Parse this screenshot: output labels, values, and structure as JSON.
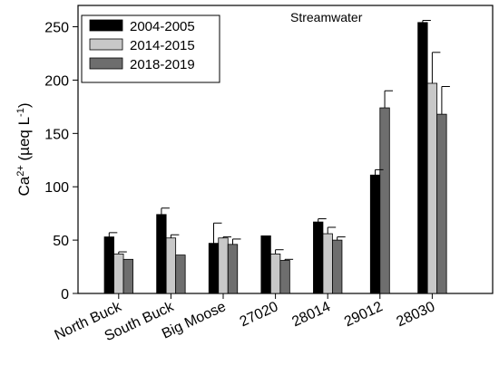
{
  "chart_data": {
    "type": "bar",
    "title": "Streamwater",
    "ylabel": {
      "base": "Ca",
      "base_sup": "2+",
      "unit_open": " (µeq L",
      "unit_sup": "-1",
      "unit_close": ")"
    },
    "xlabel": "",
    "ylim": [
      0,
      270
    ],
    "yticks": [
      0,
      50,
      100,
      150,
      200,
      250
    ],
    "grid": false,
    "legend_position": "top-left",
    "categories": [
      "North Buck",
      "South Buck",
      "Big Moose",
      "27020",
      "28014",
      "29012",
      "28030"
    ],
    "series": [
      {
        "name": "2004-2005",
        "color": "#000000",
        "values": [
          53,
          74,
          47,
          54,
          67,
          null,
          254
        ],
        "errors": [
          4,
          6,
          19,
          0,
          3,
          null,
          2
        ]
      },
      {
        "name": "2014-2015",
        "color": "#c8c8c8",
        "values": [
          37,
          52,
          52,
          37,
          56,
          null,
          197
        ],
        "errors": [
          2,
          3,
          1,
          4,
          6,
          0,
          29
        ]
      },
      {
        "name": "2018-2019",
        "color": "#6e6e6e",
        "values": [
          32,
          36,
          46,
          31,
          50,
          111,
          168
        ],
        "errors": [
          0,
          0,
          5,
          1,
          3,
          5,
          26
        ]
      }
    ],
    "extra_bars": [
      {
        "category_index": 5,
        "series_index": 1,
        "value": 174,
        "error": 16,
        "note": "29012 second bar"
      }
    ]
  }
}
